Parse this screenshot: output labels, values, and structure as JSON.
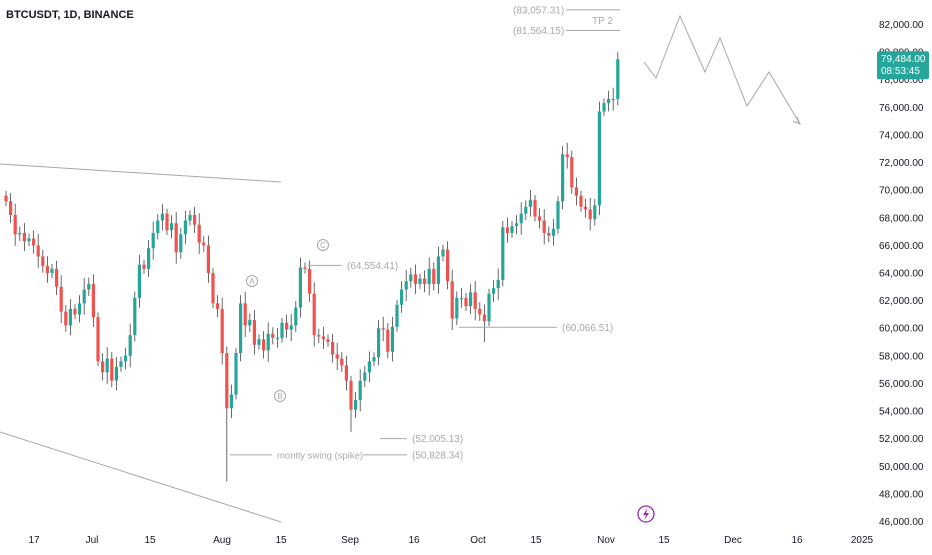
{
  "header": {
    "symbol_line": "BTCUSDT, 1D, BINANCE"
  },
  "colors": {
    "up": "#26a69a",
    "down": "#ef5350",
    "wick": "#444444",
    "annotation": "#a8a8a8",
    "axis_text": "#131722",
    "price_label_bg": "#26a69a",
    "lightning": "#9c27b0"
  },
  "price_label": {
    "price": "79,484.00",
    "countdown": "08:53:45"
  },
  "annotations": {
    "levels": [
      {
        "text": "(83,057.31)",
        "price": 83057.31
      },
      {
        "text": "(81,564.15)",
        "price": 81564.15
      },
      {
        "text": "(64,554.41)",
        "price": 64554.41
      },
      {
        "text": "(60,066.51)",
        "price": 60066.51
      },
      {
        "text": "(52,005.13)",
        "price": 52005.13
      },
      {
        "text": "(50,828.34)",
        "price": 50828.34
      }
    ],
    "tp_label": "TP 2",
    "swing_label": "montly swing (spike)",
    "wave_labels": [
      "A",
      "B",
      "C"
    ],
    "lightning_icon": "lightning-icon"
  },
  "chart_data": {
    "type": "candlestick",
    "symbol": "BTCUSDT",
    "interval": "1D",
    "exchange": "BINANCE",
    "ylim": [
      46000,
      83500
    ],
    "y_ticks": [
      "82,000.00",
      "80,000.00",
      "78,000.00",
      "76,000.00",
      "74,000.00",
      "72,000.00",
      "70,000.00",
      "68,000.00",
      "66,000.00",
      "64,000.00",
      "62,000.00",
      "60,000.00",
      "58,000.00",
      "56,000.00",
      "54,000.00",
      "52,000.00",
      "50,000.00",
      "48,000.00",
      "46,000.00"
    ],
    "x_ticks": [
      "17",
      "Jul",
      "15",
      "Aug",
      "15",
      "Sep",
      "16",
      "Oct",
      "15",
      "Nov",
      "15",
      "Dec",
      "16",
      "2025"
    ],
    "last_price": 79484.0,
    "closes": [
      69200,
      68200,
      66800,
      66900,
      66300,
      66500,
      66000,
      65200,
      64500,
      64000,
      64300,
      63000,
      61200,
      60200,
      61400,
      61000,
      61800,
      62800,
      63200,
      60800,
      57600,
      56800,
      57800,
      56200,
      57200,
      57600,
      58000,
      59500,
      62200,
      64600,
      64300,
      65800,
      66900,
      67800,
      68300,
      67100,
      67600,
      65500,
      66800,
      67800,
      68200,
      67500,
      66200,
      66000,
      64000,
      61800,
      61400,
      58200,
      54200,
      55200,
      58200,
      61800,
      60200,
      60600,
      58800,
      59200,
      58400,
      59600,
      59300,
      59300,
      60400,
      59900,
      60200,
      61500,
      64400,
      64300,
      62500,
      59500,
      59400,
      59200,
      59000,
      58100,
      57800,
      57300,
      56200,
      54100,
      54800,
      56200,
      56800,
      57600,
      57900,
      60000,
      59900,
      58300,
      60100,
      61700,
      62800,
      63400,
      63900,
      63200,
      63600,
      63200,
      64300,
      63200,
      65200,
      65700,
      63400,
      60700,
      62200,
      62200,
      61600,
      62600,
      61400,
      61000,
      60500,
      62500,
      62900,
      63500,
      67300,
      66900,
      67400,
      67600,
      68300,
      68800,
      69300,
      68100,
      67800,
      66900,
      66700,
      67200,
      69200,
      72600,
      72400,
      70200,
      69600,
      68800,
      68600,
      67900,
      68900,
      75700,
      76300,
      76600,
      76600,
      79484
    ]
  }
}
